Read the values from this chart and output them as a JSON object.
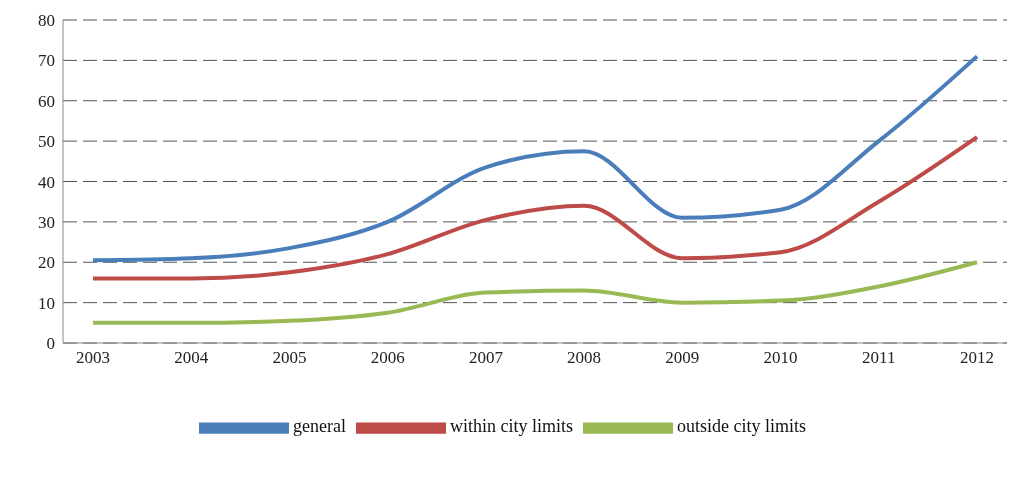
{
  "chart_data": {
    "type": "line",
    "categories": [
      "2003",
      "2004",
      "2005",
      "2006",
      "2007",
      "2008",
      "2009",
      "2010",
      "2011",
      "2012"
    ],
    "series": [
      {
        "name": "general",
        "color": "#4a7ebb",
        "values": [
          20.5,
          21,
          23.5,
          30,
          43.5,
          47.5,
          31,
          33,
          50,
          71
        ]
      },
      {
        "name": "within city limits",
        "color": "#be4b48",
        "values": [
          16,
          16,
          17.5,
          22,
          30.5,
          34,
          21,
          22.5,
          35,
          51
        ]
      },
      {
        "name": "outside city limits",
        "color": "#98b954",
        "values": [
          5,
          5,
          5.5,
          7.5,
          12.5,
          13,
          10,
          10.5,
          14,
          20
        ]
      }
    ],
    "ylim": [
      0,
      80
    ],
    "yticks": [
      0,
      10,
      20,
      30,
      40,
      50,
      60,
      70,
      80
    ],
    "grid": "y",
    "legend": "bottom",
    "marker": "none",
    "line_style": "solid"
  }
}
